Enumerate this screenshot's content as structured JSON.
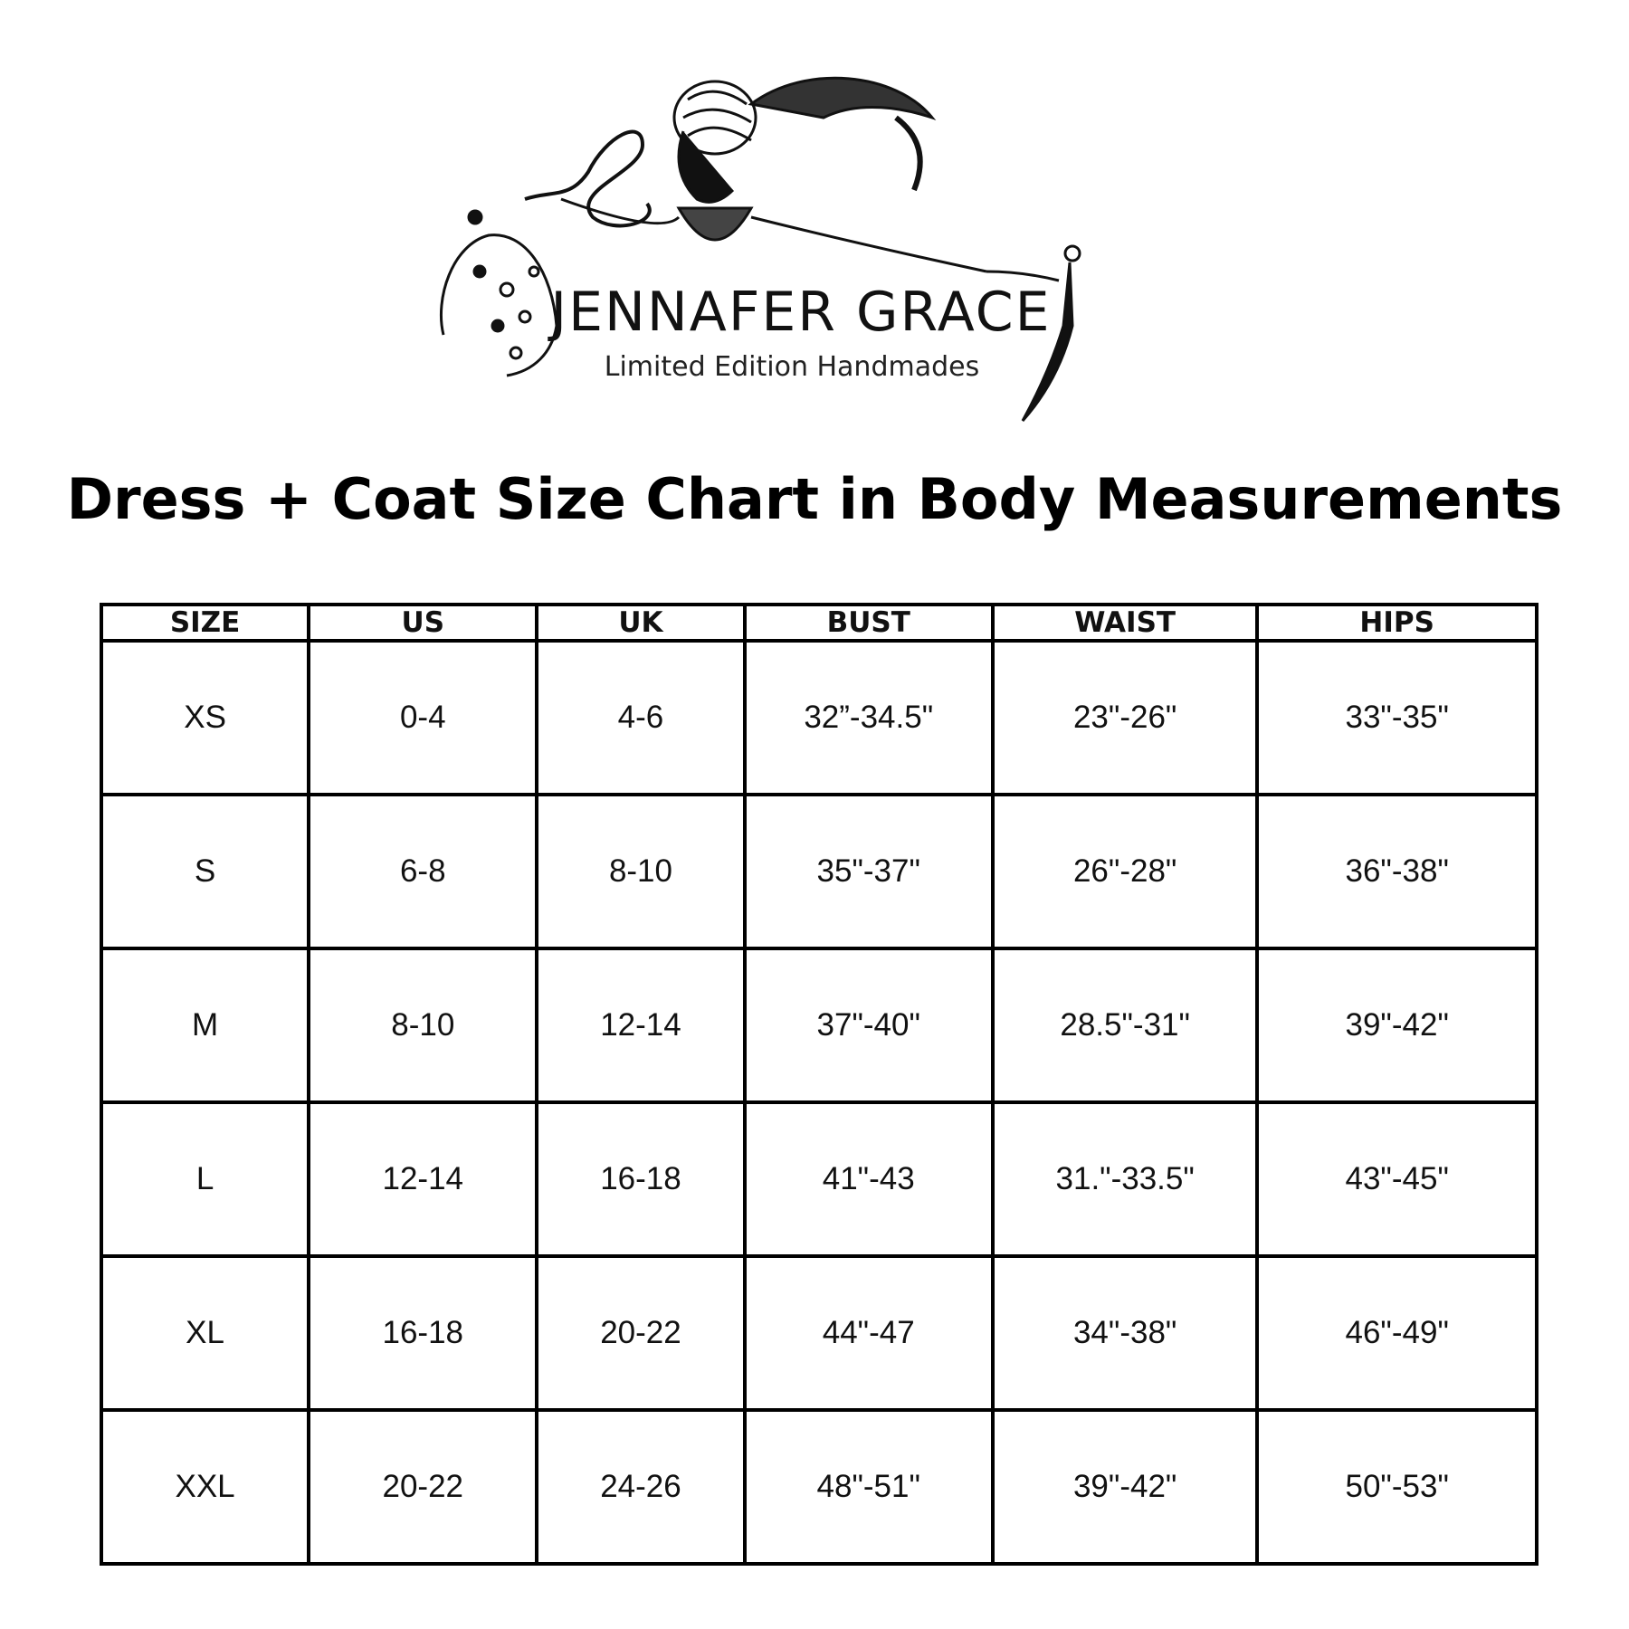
{
  "logo": {
    "brand": "JENNAFER GRACE",
    "tagline": "Limited Edition Handmades"
  },
  "title": "Dress + Coat Size Chart in Body Measurements",
  "table": {
    "headers": [
      "SIZE",
      "US",
      "UK",
      "BUST",
      "WAIST",
      "HIPS"
    ],
    "rows": [
      [
        "XS",
        "0-4",
        "4-6",
        "32”-34.5\"",
        "23\"-26\"",
        "33\"-35\""
      ],
      [
        "S",
        "6-8",
        "8-10",
        "35\"-37\"",
        "26\"-28\"",
        "36\"-38\""
      ],
      [
        "M",
        "8-10",
        "12-14",
        "37\"-40\"",
        "28.5\"-31\"",
        "39\"-42\""
      ],
      [
        "L",
        "12-14",
        "16-18",
        "41\"-43",
        "31.\"-33.5\"",
        "43\"-45\""
      ],
      [
        "XL",
        "16-18",
        "20-22",
        "44\"-47",
        "34\"-38\"",
        "46\"-49\""
      ],
      [
        "XXL",
        "20-22",
        "24-26",
        "48\"-51\"",
        "39\"-42\"",
        "50\"-53\""
      ]
    ]
  }
}
